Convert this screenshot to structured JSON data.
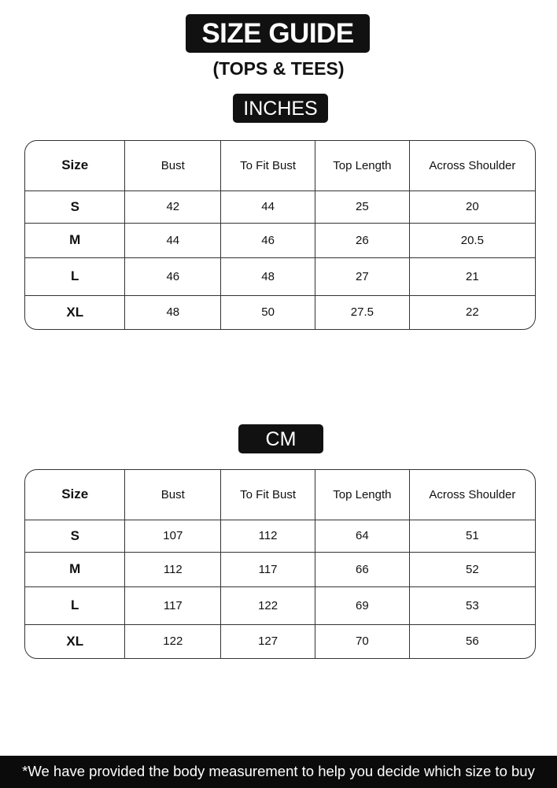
{
  "title": "SIZE GUIDE",
  "subtitle": "(TOPS & TEES)",
  "columns": [
    "Size",
    "Bust",
    "To Fit Bust",
    "Top Length",
    "Across Shoulder"
  ],
  "tables": [
    {
      "unit": "INCHES",
      "rows": [
        [
          "S",
          "42",
          "44",
          "25",
          "20"
        ],
        [
          "M",
          "44",
          "46",
          "26",
          "20.5"
        ],
        [
          "L",
          "46",
          "48",
          "27",
          "21"
        ],
        [
          "XL",
          "48",
          "50",
          "27.5",
          "22"
        ]
      ]
    },
    {
      "unit": "CM",
      "rows": [
        [
          "S",
          "107",
          "112",
          "64",
          "51"
        ],
        [
          "M",
          "112",
          "117",
          "66",
          "52"
        ],
        [
          "L",
          "117",
          "122",
          "69",
          "53"
        ],
        [
          "XL",
          "122",
          "127",
          "70",
          "56"
        ]
      ]
    }
  ],
  "footer": "*We have provided the body measurement to help you decide which size to buy"
}
